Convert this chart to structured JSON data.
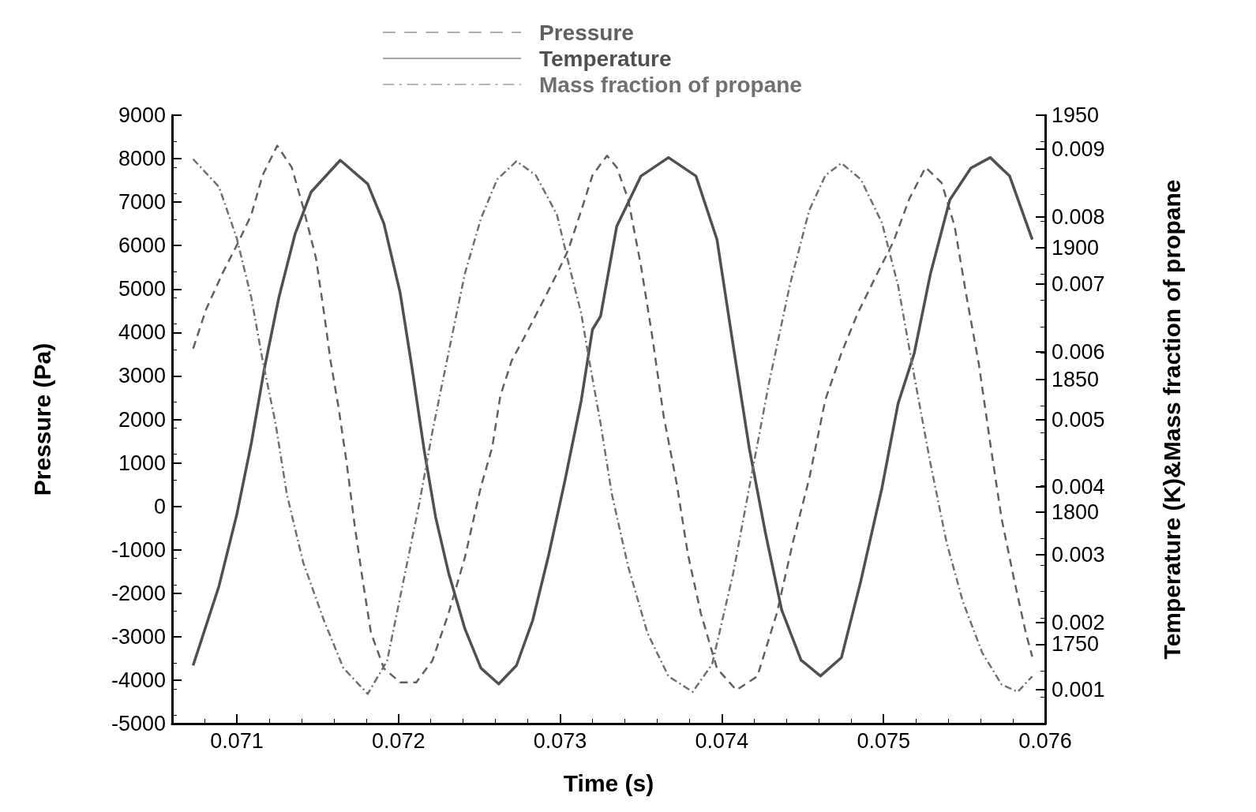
{
  "chart_data": {
    "type": "line",
    "xlabel": "Time (s)",
    "ylabel": "Pressure (Pa)",
    "y2label": "Temperature (K)&Mass fraction of propane",
    "xlim": [
      0.0706,
      0.076
    ],
    "xticks": [
      0.071,
      0.072,
      0.073,
      0.074,
      0.075,
      0.076
    ],
    "ylim": [
      -5000,
      9000
    ],
    "yticks": [
      -5000,
      -4000,
      -3000,
      -2000,
      -1000,
      0,
      1000,
      2000,
      3000,
      4000,
      5000,
      6000,
      7000,
      8000,
      9000
    ],
    "y2lim": [
      1720,
      1950
    ],
    "y2ticks": [
      1750,
      1800,
      1850,
      1900,
      1950
    ],
    "y3lim": [
      0.0005,
      0.0095
    ],
    "y3ticks": [
      0.001,
      0.002,
      0.003,
      0.004,
      0.005,
      0.006,
      0.007,
      0.008,
      0.009
    ],
    "legend": "top",
    "grid": false,
    "marker": "none",
    "series": [
      {
        "name": "Pressure",
        "color": "#606060",
        "line_style": "dashed",
        "axis": "y",
        "x": [
          0.07073,
          0.07081,
          0.07091,
          0.07101,
          0.07109,
          0.07116,
          0.07125,
          0.07134,
          0.07141,
          0.07149,
          0.07154,
          0.07158,
          0.07163,
          0.07168,
          0.07173,
          0.07178,
          0.07183,
          0.07191,
          0.07201,
          0.07211,
          0.07221,
          0.07231,
          0.07241,
          0.07251,
          0.07258,
          0.07263,
          0.0727,
          0.07278,
          0.07288,
          0.07298,
          0.07305,
          0.07313,
          0.0732,
          0.07329,
          0.07335,
          0.07342,
          0.0735,
          0.07357,
          0.07364,
          0.07372,
          0.07379,
          0.07387,
          0.07397,
          0.07409,
          0.07422,
          0.07434,
          0.07444,
          0.07454,
          0.07464,
          0.07474,
          0.07484,
          0.07496,
          0.07506,
          0.07516,
          0.07526,
          0.07536,
          0.07544,
          0.07551,
          0.07559,
          0.07566,
          0.07573,
          0.07581,
          0.07588,
          0.07592
        ],
        "values": [
          3630,
          4530,
          5350,
          6080,
          6710,
          7620,
          8300,
          7800,
          6890,
          5710,
          4440,
          3350,
          2260,
          990,
          -460,
          -1730,
          -2910,
          -3730,
          -4050,
          -4050,
          -3550,
          -2460,
          -1190,
          450,
          1360,
          2540,
          3350,
          3900,
          4620,
          5350,
          5900,
          6800,
          7620,
          8070,
          7800,
          7080,
          5530,
          3900,
          2080,
          540,
          -1100,
          -2460,
          -3730,
          -4230,
          -3910,
          -2460,
          -820,
          630,
          2450,
          3530,
          4440,
          5350,
          6080,
          7080,
          7800,
          7440,
          6440,
          4900,
          3260,
          1450,
          -280,
          -1730,
          -2910,
          -3460
        ]
      },
      {
        "name": "Temperature",
        "color": "#505050",
        "line_style": "solid",
        "axis": "y2",
        "x": [
          0.07073,
          0.07089,
          0.071,
          0.07109,
          0.07117,
          0.07126,
          0.07136,
          0.07146,
          0.07164,
          0.07181,
          0.07191,
          0.07201,
          0.07208,
          0.07216,
          0.07223,
          0.07231,
          0.07241,
          0.07251,
          0.07262,
          0.07273,
          0.07283,
          0.07293,
          0.07303,
          0.07313,
          0.0732,
          0.07325,
          0.07335,
          0.0735,
          0.07367,
          0.07384,
          0.07397,
          0.07407,
          0.07417,
          0.07427,
          0.07437,
          0.07449,
          0.07461,
          0.07474,
          0.07486,
          0.07499,
          0.07509,
          0.07519,
          0.07529,
          0.07541,
          0.07554,
          0.07566,
          0.07578,
          0.07592
        ],
        "values": [
          1742,
          1772,
          1799,
          1826,
          1854,
          1881,
          1905,
          1921,
          1933,
          1924,
          1909,
          1883,
          1856,
          1823,
          1798,
          1777,
          1756,
          1741,
          1735,
          1742,
          1759,
          1784,
          1812,
          1842,
          1869,
          1874,
          1908,
          1927,
          1934,
          1927,
          1903,
          1863,
          1824,
          1792,
          1763,
          1744,
          1738,
          1745,
          1774,
          1809,
          1841,
          1860,
          1890,
          1918,
          1930,
          1934,
          1927,
          1903
        ]
      },
      {
        "name": "Mass fraction of propane",
        "color": "#707070",
        "line_style": "dashdot",
        "axis": "y3",
        "x": [
          0.07073,
          0.07089,
          0.071,
          0.07109,
          0.07116,
          0.07124,
          0.07131,
          0.07141,
          0.07154,
          0.07166,
          0.07181,
          0.07193,
          0.07203,
          0.07213,
          0.07221,
          0.07231,
          0.07241,
          0.07251,
          0.07261,
          0.07273,
          0.07285,
          0.07298,
          0.07305,
          0.07313,
          0.07318,
          0.07325,
          0.07332,
          0.07342,
          0.07354,
          0.07367,
          0.07382,
          0.07394,
          0.07407,
          0.07417,
          0.07429,
          0.07442,
          0.07454,
          0.07464,
          0.07474,
          0.07486,
          0.07499,
          0.07509,
          0.07519,
          0.07529,
          0.07539,
          0.07549,
          0.07561,
          0.07573,
          0.07583,
          0.07592
        ],
        "values": [
          0.00885,
          0.00844,
          0.00768,
          0.0068,
          0.00587,
          0.00494,
          0.00389,
          0.00289,
          0.00202,
          0.00132,
          0.00094,
          0.00143,
          0.0026,
          0.00377,
          0.00482,
          0.00599,
          0.00715,
          0.00797,
          0.00855,
          0.00882,
          0.00861,
          0.00803,
          0.00733,
          0.00657,
          0.00587,
          0.00494,
          0.00389,
          0.00283,
          0.00184,
          0.0012,
          0.00097,
          0.00138,
          0.00272,
          0.004,
          0.00552,
          0.00698,
          0.00809,
          0.00861,
          0.00879,
          0.00855,
          0.00791,
          0.00698,
          0.00564,
          0.00435,
          0.00318,
          0.00231,
          0.00155,
          0.00108,
          0.00097,
          0.0012
        ]
      }
    ]
  }
}
